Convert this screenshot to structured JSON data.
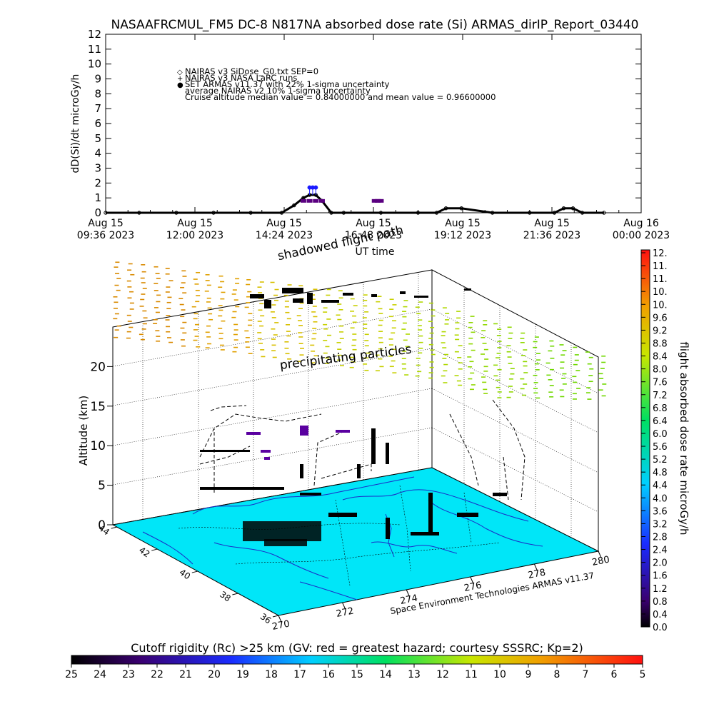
{
  "title": "NASAAFRCMUL_FM5 DC-8   N817NA absorbed dose rate (Si) ARMAS_dirIP_Report_03440",
  "chart_data": [
    {
      "type": "line",
      "title": "NASAAFRCMUL_FM5 DC-8   N817NA absorbed dose rate (Si) ARMAS_dirIP_Report_03440",
      "ylabel": "dD(Si)/dt microGy/h",
      "xlabel": "UT time",
      "ylim": [
        0,
        12
      ],
      "yticks": [
        "0",
        "1",
        "2",
        "3",
        "4",
        "5",
        "6",
        "7",
        "8",
        "9",
        "10",
        "11",
        "12"
      ],
      "xticks": [
        {
          "line1": "Aug 15",
          "line2": "09:36 2023"
        },
        {
          "line1": "Aug 15",
          "line2": "12:00 2023"
        },
        {
          "line1": "Aug 15",
          "line2": "14:24 2023"
        },
        {
          "line1": "Aug 15",
          "line2": "16:48 2023"
        },
        {
          "line1": "Aug 15",
          "line2": "19:12 2023"
        },
        {
          "line1": "Aug 15",
          "line2": "21:36 2023"
        },
        {
          "line1": "Aug 16",
          "line2": "00:00 2023"
        }
      ],
      "legend": [
        {
          "symbol": "◇",
          "text": "NAIRAS v3 SiDose_G0.txt SEP=0",
          "color": "#000000"
        },
        {
          "symbol": "+",
          "text": "NAIRAS v3 NASA LaRC runs",
          "color": "#000000"
        },
        {
          "symbol": "●",
          "text": "SET ARMAS v11.37 with 22% 1-sigma uncertainty",
          "color": "#1a1aff"
        },
        {
          "symbol": "",
          "text": "average NAIRAS v2 10% 1-sigma uncertainty",
          "color": "#000000"
        },
        {
          "symbol": "",
          "text": "Cruise altitude median value = 0.84000000 and mean value = 0.96600000",
          "color": "#000000"
        }
      ],
      "series": [
        {
          "x": [
            "09:36",
            "10:30",
            "11:30",
            "12:30",
            "13:30",
            "14:20",
            "14:40",
            "14:55",
            "15:05",
            "15:15",
            "15:25",
            "15:40",
            "16:00",
            "17:00",
            "18:00",
            "18:30",
            "18:45",
            "19:10",
            "20:00",
            "21:00",
            "21:40",
            "21:55",
            "22:10",
            "22:25",
            "23:00"
          ],
          "values": [
            0.0,
            0.0,
            0.0,
            0.0,
            0.0,
            0.0,
            0.5,
            1.0,
            1.2,
            1.2,
            0.8,
            0.0,
            0.0,
            0.0,
            0.0,
            0.0,
            0.3,
            0.3,
            0.0,
            0.0,
            0.0,
            0.3,
            0.3,
            0.0,
            0.0
          ]
        },
        {
          "x": [
            "15:05",
            "15:10",
            "15:15"
          ],
          "values": [
            1.7,
            1.7,
            1.7
          ]
        },
        {
          "x": [
            "14:55",
            "15:05",
            "15:15",
            "15:25",
            "16:50",
            "16:55",
            "17:00"
          ],
          "values": [
            0.8,
            0.8,
            0.8,
            0.8,
            0.8,
            0.8,
            0.8
          ]
        }
      ]
    },
    {
      "type": "scatter",
      "ylabel": "Altitude (km)",
      "zticks": [
        "0",
        "5",
        "10",
        "15",
        "20"
      ],
      "longitude_ticks": [
        "270",
        "272",
        "274",
        "276",
        "278",
        "280"
      ],
      "latitude_ticks": [
        "44",
        "42",
        "40",
        "38",
        "36"
      ],
      "annotations": [
        "shadowed flight path",
        "precipitating particles"
      ],
      "credit": "Space Environment Technologies ARMAS v11.37"
    }
  ],
  "dose_colorbar": {
    "label": "flight absorbed dose rate microGy/h",
    "ticks": [
      "12.",
      "11.",
      "11.",
      "10.",
      "10.",
      "9.6",
      "9.2",
      "8.8",
      "8.4",
      "8.0",
      "7.6",
      "7.2",
      "6.8",
      "6.4",
      "6.0",
      "5.6",
      "5.2",
      "4.8",
      "4.4",
      "4.0",
      "3.6",
      "3.2",
      "2.8",
      "2.4",
      "2.0",
      "1.6",
      "1.2",
      "0.8",
      "0.4",
      "0.0"
    ]
  },
  "rigidity_colorbar": {
    "label": "Cutoff rigidity (Rc) >25 km (GV: red = greatest hazard; courtesy SSSRC; Kp=2)",
    "ticks": [
      "25",
      "24",
      "23",
      "22",
      "21",
      "20",
      "19",
      "18",
      "17",
      "16",
      "15",
      "14",
      "13",
      "12",
      "11",
      "10",
      "9",
      "8",
      "7",
      "6",
      "5"
    ]
  }
}
